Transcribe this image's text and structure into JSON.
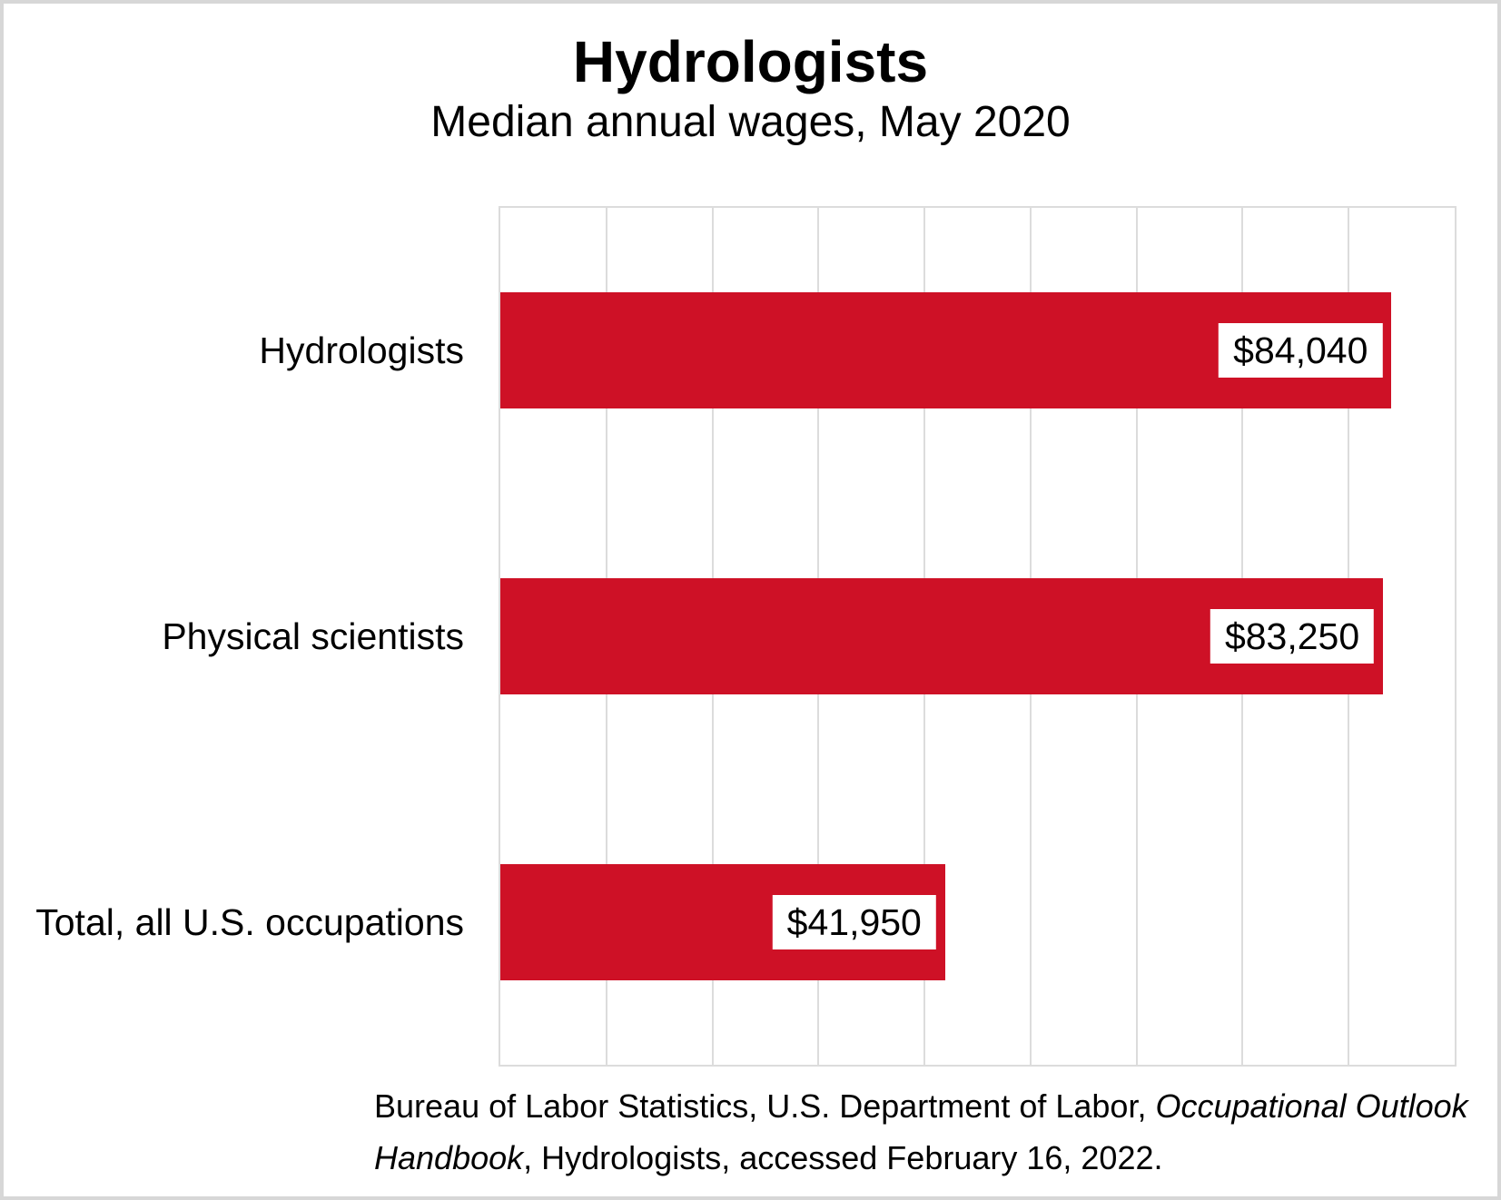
{
  "chart_data": {
    "type": "bar",
    "orientation": "horizontal",
    "title": "Hydrologists",
    "subtitle": "Median annual wages, May 2020",
    "categories": [
      "Hydrologists",
      "Physical scientists",
      "Total, all U.S. occupations"
    ],
    "values": [
      84040,
      83250,
      41950
    ],
    "value_labels": [
      "$84,040",
      "$83,250",
      "$41,950"
    ],
    "xlabel": "",
    "ylabel": "",
    "xlim": [
      0,
      90000
    ],
    "gridline_step": 10000,
    "grid": true,
    "legend": "none",
    "bar_color": "#CE1126",
    "gridline_color": "#DCDCDC",
    "value_label_bg": "#FFFFFF",
    "value_label_color": "#000000"
  },
  "source": {
    "lines": [
      [
        {
          "text": "Bureau of Labor Statistics, U.S. Department of Labor, ",
          "italic": false
        },
        {
          "text": "Occupational Outlook",
          "italic": true
        }
      ],
      [
        {
          "text": "Handbook",
          "italic": true
        },
        {
          "text": ", Hydrologists, accessed February 16, 2022.",
          "italic": false
        }
      ]
    ]
  }
}
